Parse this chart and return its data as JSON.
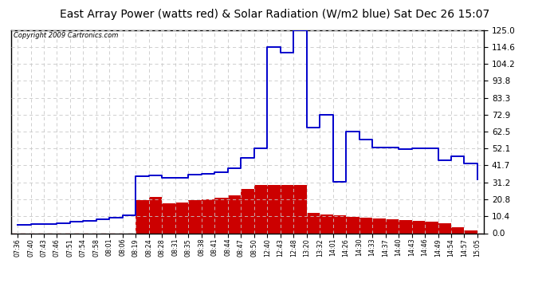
{
  "title": "East Array Power (watts red) & Solar Radiation (W/m2 blue) Sat Dec 26 15:07",
  "copyright": "Copyright 2009 Cartronics.com",
  "title_fontsize": 10,
  "background_color": "#ffffff",
  "plot_bg_color": "#ffffff",
  "grid_color": "#c8c8c8",
  "y_ticks": [
    0.0,
    10.4,
    20.8,
    31.2,
    41.7,
    52.1,
    62.5,
    72.9,
    83.3,
    93.8,
    104.2,
    114.6,
    125.0
  ],
  "x_labels": [
    "07:36",
    "07:40",
    "07:43",
    "07:46",
    "07:51",
    "07:54",
    "07:58",
    "08:01",
    "08:06",
    "08:19",
    "08:24",
    "08:28",
    "08:31",
    "08:35",
    "08:38",
    "08:41",
    "08:44",
    "08:47",
    "08:50",
    "12:40",
    "12:43",
    "12:48",
    "13:20",
    "13:32",
    "14:01",
    "14:26",
    "14:30",
    "14:33",
    "14:37",
    "14:40",
    "14:43",
    "14:46",
    "14:49",
    "14:54",
    "14:57",
    "15:05"
  ],
  "blue_line": [
    5.2,
    5.5,
    5.8,
    6.2,
    7.0,
    7.8,
    8.5,
    9.5,
    11.0,
    35.0,
    35.5,
    34.0,
    34.0,
    36.0,
    36.5,
    37.5,
    40.0,
    46.5,
    52.0,
    114.5,
    111.0,
    125.0,
    65.0,
    73.0,
    31.5,
    62.5,
    57.5,
    52.5,
    52.5,
    51.5,
    52.0,
    52.0,
    45.0,
    47.5,
    43.0,
    33.0
  ],
  "red_fill": [
    0,
    0,
    0,
    0,
    0,
    0,
    0,
    0,
    0,
    20.5,
    22.5,
    18.5,
    19.0,
    20.5,
    21.0,
    22.0,
    23.5,
    27.0,
    29.5,
    29.8,
    29.5,
    29.5,
    12.5,
    11.5,
    10.8,
    10.2,
    9.5,
    9.0,
    8.5,
    8.0,
    7.5,
    7.0,
    6.0,
    3.5,
    1.5,
    0
  ],
  "blue_color": "#0000cc",
  "red_color": "#cc0000",
  "dashed_red_color": "#cc0000"
}
